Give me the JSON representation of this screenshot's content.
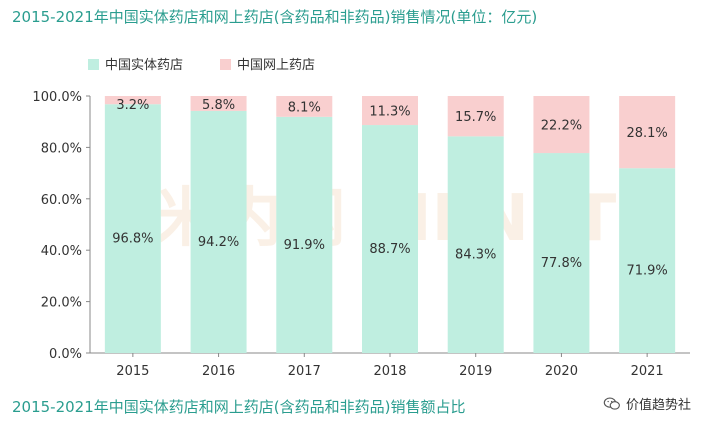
{
  "chart_data": {
    "type": "bar",
    "stacked": true,
    "title": "2015-2021年中国实体药店和网上药店(含药品和非药品)销售情况(单位：亿元)",
    "caption": "2015-2021年中国实体药店和网上药店(含药品和非药品)销售额占比",
    "categories": [
      "2015",
      "2016",
      "2017",
      "2018",
      "2019",
      "2020",
      "2021"
    ],
    "series": [
      {
        "name": "中国实体药店",
        "values": [
          96.8,
          94.2,
          91.9,
          88.7,
          84.3,
          77.8,
          71.9
        ],
        "color": "#bfeee0",
        "labels": [
          "96.8%",
          "94.2%",
          "91.9%",
          "88.7%",
          "84.3%",
          "77.8%",
          "71.9%"
        ]
      },
      {
        "name": "中国网上药店",
        "values": [
          3.2,
          5.8,
          8.1,
          11.3,
          15.7,
          22.2,
          28.1
        ],
        "color": "#f9cfcf",
        "labels": [
          "3.2%",
          "5.8%",
          "8.1%",
          "11.3%",
          "15.7%",
          "22.2%",
          "28.1%"
        ]
      }
    ],
    "ylim": [
      0,
      100
    ],
    "yticks": [
      "0.0%",
      "20.0%",
      "40.0%",
      "60.0%",
      "80.0%",
      "100.0%"
    ],
    "grid": false,
    "legend_position": "top-left"
  },
  "watermark": "米内网 MENET",
  "brand": {
    "name": "价值趋势社",
    "icon": "wechat-icon"
  },
  "colors": {
    "title": "#2a9d8f",
    "axis": "#888888"
  }
}
